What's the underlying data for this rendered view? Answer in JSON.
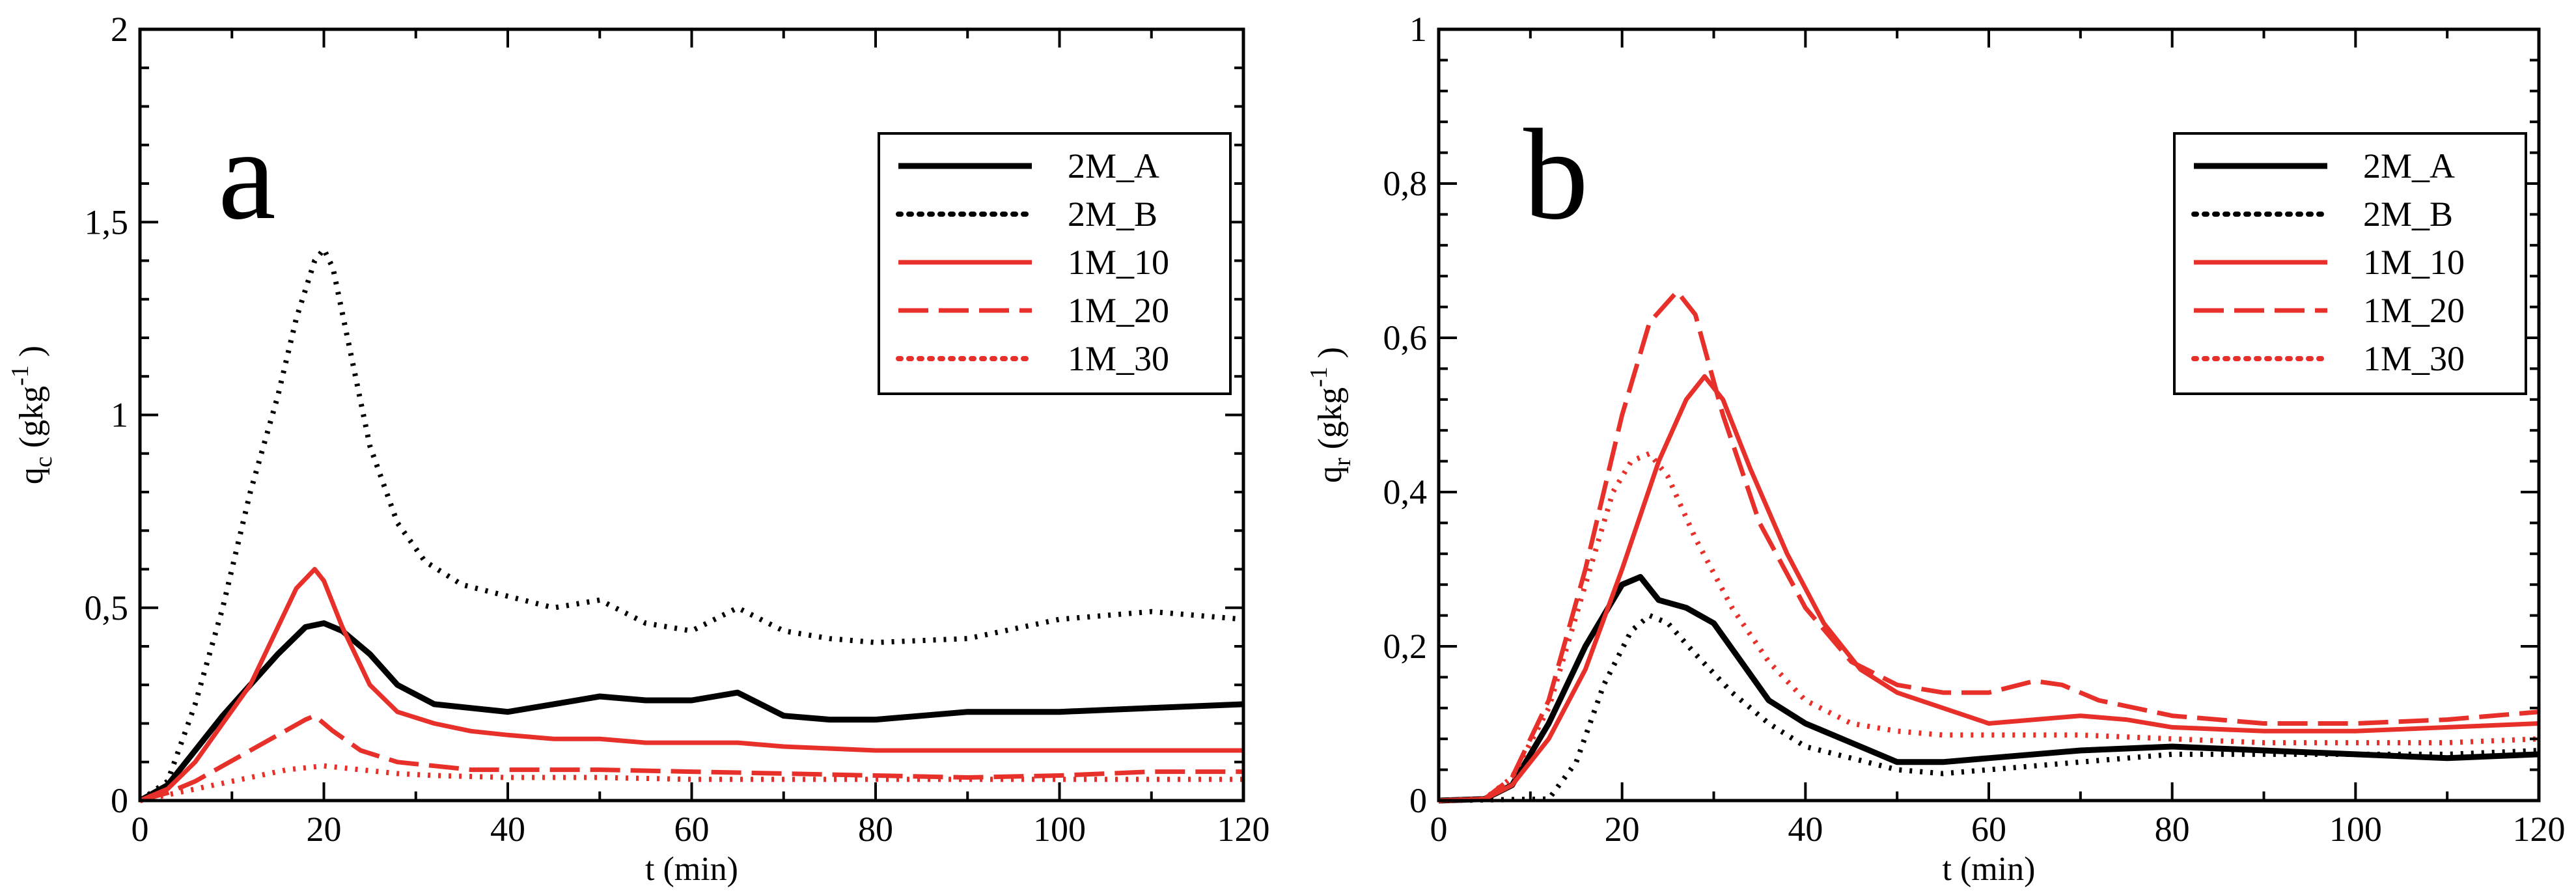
{
  "chart_data": [
    {
      "type": "line",
      "panel_label": "a",
      "xlabel": "t (min)",
      "ylabel_main": "q",
      "ylabel_sub": "c",
      "ylabel_unit": "(gkg",
      "ylabel_exp": "-1",
      "ylabel_close": ")",
      "xlim": [
        0,
        120
      ],
      "ylim": [
        0,
        2
      ],
      "xticks": [
        0,
        20,
        40,
        60,
        80,
        100,
        120
      ],
      "xtick_labels": [
        "0",
        "20",
        "40",
        "60",
        "80",
        "100",
        "120"
      ],
      "yticks": [
        0,
        0.5,
        1,
        1.5,
        2
      ],
      "ytick_labels": [
        "0",
        "0,5",
        "1",
        "1,5",
        "2"
      ],
      "legend_position": "top-right",
      "series": [
        {
          "name": "2M_A",
          "color": "#000000",
          "style": "solid",
          "x": [
            0,
            3,
            6,
            9,
            12,
            15,
            18,
            20,
            22,
            25,
            28,
            32,
            36,
            40,
            45,
            50,
            55,
            60,
            65,
            70,
            75,
            80,
            90,
            100,
            110,
            120
          ],
          "y": [
            0,
            0.04,
            0.13,
            0.22,
            0.3,
            0.38,
            0.45,
            0.46,
            0.44,
            0.38,
            0.3,
            0.25,
            0.24,
            0.23,
            0.25,
            0.27,
            0.26,
            0.26,
            0.28,
            0.22,
            0.21,
            0.21,
            0.23,
            0.23,
            0.24,
            0.25
          ]
        },
        {
          "name": "2M_B",
          "color": "#000000",
          "style": "dotted",
          "x": [
            0,
            3,
            6,
            9,
            12,
            15,
            17,
            19,
            20,
            21,
            23,
            25,
            28,
            31,
            35,
            40,
            45,
            50,
            55,
            60,
            65,
            70,
            75,
            80,
            90,
            100,
            110,
            120
          ],
          "y": [
            0,
            0.05,
            0.25,
            0.5,
            0.8,
            1.05,
            1.25,
            1.4,
            1.43,
            1.38,
            1.15,
            0.92,
            0.72,
            0.62,
            0.56,
            0.53,
            0.5,
            0.52,
            0.46,
            0.44,
            0.5,
            0.44,
            0.42,
            0.41,
            0.42,
            0.47,
            0.49,
            0.47
          ]
        },
        {
          "name": "1M_10",
          "color": "#e8302a",
          "style": "solid",
          "x": [
            0,
            3,
            6,
            9,
            12,
            15,
            17,
            19,
            20,
            22,
            25,
            28,
            32,
            36,
            40,
            45,
            50,
            55,
            60,
            65,
            70,
            80,
            90,
            100,
            110,
            120
          ],
          "y": [
            0,
            0.03,
            0.1,
            0.2,
            0.3,
            0.45,
            0.55,
            0.6,
            0.57,
            0.45,
            0.3,
            0.23,
            0.2,
            0.18,
            0.17,
            0.16,
            0.16,
            0.15,
            0.15,
            0.15,
            0.14,
            0.13,
            0.13,
            0.13,
            0.13,
            0.13
          ]
        },
        {
          "name": "1M_20",
          "color": "#e8302a",
          "style": "dashed",
          "x": [
            0,
            3,
            6,
            9,
            12,
            15,
            18,
            19,
            21,
            24,
            28,
            32,
            36,
            40,
            50,
            60,
            70,
            80,
            90,
            100,
            110,
            120
          ],
          "y": [
            0,
            0.02,
            0.05,
            0.09,
            0.13,
            0.17,
            0.21,
            0.22,
            0.18,
            0.13,
            0.1,
            0.09,
            0.08,
            0.08,
            0.08,
            0.075,
            0.07,
            0.065,
            0.06,
            0.065,
            0.075,
            0.075
          ]
        },
        {
          "name": "1M_30",
          "color": "#e8302a",
          "style": "dotted",
          "x": [
            0,
            4,
            8,
            12,
            16,
            20,
            24,
            28,
            32,
            40,
            50,
            60,
            70,
            80,
            90,
            100,
            110,
            120
          ],
          "y": [
            0,
            0.02,
            0.04,
            0.06,
            0.08,
            0.09,
            0.08,
            0.07,
            0.065,
            0.06,
            0.06,
            0.055,
            0.055,
            0.055,
            0.055,
            0.055,
            0.055,
            0.055
          ]
        }
      ]
    },
    {
      "type": "line",
      "panel_label": "b",
      "xlabel": "t (min)",
      "ylabel_main": "q",
      "ylabel_sub": "r",
      "ylabel_unit": "(gkg",
      "ylabel_exp": "-1",
      "ylabel_close": ")",
      "xlim": [
        0,
        120
      ],
      "ylim": [
        0,
        1
      ],
      "xticks": [
        0,
        20,
        40,
        60,
        80,
        100,
        120
      ],
      "xtick_labels": [
        "0",
        "20",
        "40",
        "60",
        "80",
        "100",
        "120"
      ],
      "yticks": [
        0,
        0.2,
        0.4,
        0.6,
        0.8,
        1
      ],
      "ytick_labels": [
        "0",
        "0,2",
        "0,4",
        "0,6",
        "0,8",
        "1"
      ],
      "legend_position": "top-right",
      "series": [
        {
          "name": "2M_A",
          "color": "#000000",
          "style": "solid",
          "x": [
            0,
            5,
            8,
            12,
            16,
            20,
            22,
            24,
            27,
            30,
            33,
            36,
            40,
            45,
            50,
            55,
            60,
            70,
            80,
            90,
            100,
            110,
            120
          ],
          "y": [
            0,
            0.002,
            0.02,
            0.1,
            0.2,
            0.28,
            0.29,
            0.26,
            0.25,
            0.23,
            0.18,
            0.13,
            0.1,
            0.075,
            0.05,
            0.05,
            0.055,
            0.065,
            0.07,
            0.065,
            0.06,
            0.055,
            0.06
          ]
        },
        {
          "name": "2M_B",
          "color": "#000000",
          "style": "dotted",
          "x": [
            0,
            12,
            15,
            18,
            21,
            23,
            25,
            28,
            32,
            36,
            40,
            45,
            50,
            55,
            60,
            70,
            80,
            90,
            100,
            110,
            120
          ],
          "y": [
            0,
            0.002,
            0.05,
            0.15,
            0.22,
            0.24,
            0.23,
            0.19,
            0.14,
            0.1,
            0.07,
            0.055,
            0.04,
            0.035,
            0.04,
            0.05,
            0.06,
            0.06,
            0.06,
            0.06,
            0.065
          ]
        },
        {
          "name": "1M_10",
          "color": "#e8302a",
          "style": "solid",
          "x": [
            0,
            5,
            8,
            12,
            16,
            20,
            24,
            27,
            29,
            31,
            34,
            38,
            42,
            46,
            50,
            55,
            60,
            65,
            70,
            75,
            80,
            90,
            100,
            110,
            120
          ],
          "y": [
            0,
            0.002,
            0.02,
            0.08,
            0.17,
            0.3,
            0.44,
            0.52,
            0.55,
            0.52,
            0.43,
            0.32,
            0.23,
            0.17,
            0.14,
            0.12,
            0.1,
            0.105,
            0.11,
            0.105,
            0.095,
            0.09,
            0.09,
            0.095,
            0.1
          ]
        },
        {
          "name": "1M_20",
          "color": "#e8302a",
          "style": "dashed",
          "x": [
            0,
            5,
            8,
            12,
            16,
            20,
            23,
            26,
            28,
            31,
            35,
            40,
            45,
            50,
            55,
            60,
            65,
            68,
            72,
            80,
            90,
            100,
            110,
            120
          ],
          "y": [
            0,
            0.002,
            0.03,
            0.13,
            0.3,
            0.5,
            0.62,
            0.66,
            0.63,
            0.5,
            0.36,
            0.25,
            0.18,
            0.15,
            0.14,
            0.14,
            0.155,
            0.15,
            0.13,
            0.11,
            0.1,
            0.1,
            0.105,
            0.115
          ]
        },
        {
          "name": "1M_30",
          "color": "#e8302a",
          "style": "dotted",
          "x": [
            0,
            5,
            8,
            12,
            16,
            19,
            21,
            23,
            25,
            28,
            32,
            36,
            40,
            45,
            50,
            55,
            60,
            70,
            80,
            90,
            100,
            110,
            120
          ],
          "y": [
            0,
            0.002,
            0.03,
            0.12,
            0.28,
            0.4,
            0.44,
            0.45,
            0.42,
            0.34,
            0.25,
            0.18,
            0.13,
            0.1,
            0.09,
            0.085,
            0.085,
            0.085,
            0.08,
            0.075,
            0.075,
            0.075,
            0.08
          ]
        }
      ]
    }
  ]
}
